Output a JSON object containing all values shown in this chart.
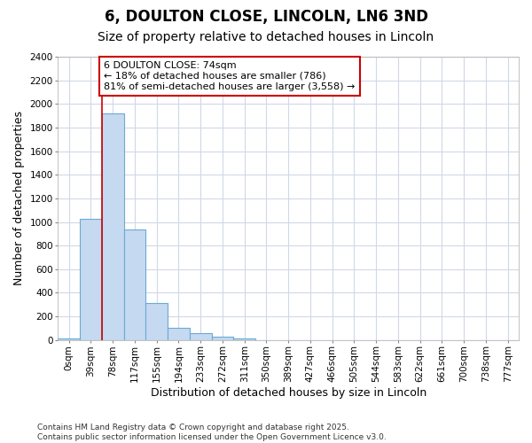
{
  "title": "6, DOULTON CLOSE, LINCOLN, LN6 3ND",
  "subtitle": "Size of property relative to detached houses in Lincoln",
  "xlabel": "Distribution of detached houses by size in Lincoln",
  "ylabel": "Number of detached properties",
  "bin_labels": [
    "0sqm",
    "39sqm",
    "78sqm",
    "117sqm",
    "155sqm",
    "194sqm",
    "233sqm",
    "272sqm",
    "311sqm",
    "350sqm",
    "389sqm",
    "427sqm",
    "466sqm",
    "505sqm",
    "544sqm",
    "583sqm",
    "622sqm",
    "661sqm",
    "700sqm",
    "738sqm",
    "777sqm"
  ],
  "bar_values": [
    15,
    1030,
    1920,
    940,
    315,
    105,
    55,
    30,
    10,
    0,
    0,
    0,
    0,
    0,
    0,
    0,
    0,
    0,
    0,
    0,
    0
  ],
  "bar_color": "#c5d9f0",
  "bar_edgecolor": "#6aaad4",
  "property_line_x": 2,
  "property_line_color": "#cc0000",
  "annotation_text": "6 DOULTON CLOSE: 74sqm\n← 18% of detached houses are smaller (786)\n81% of semi-detached houses are larger (3,558) →",
  "annotation_box_color": "#cc0000",
  "annotation_text_color": "black",
  "ylim": [
    0,
    2400
  ],
  "yticks": [
    0,
    200,
    400,
    600,
    800,
    1000,
    1200,
    1400,
    1600,
    1800,
    2000,
    2200,
    2400
  ],
  "bg_color": "#ffffff",
  "plot_bg_color": "#ffffff",
  "grid_color": "#d0d8e8",
  "footer_text": "Contains HM Land Registry data © Crown copyright and database right 2025.\nContains public sector information licensed under the Open Government Licence v3.0.",
  "title_fontsize": 12,
  "subtitle_fontsize": 10,
  "axis_label_fontsize": 9,
  "tick_fontsize": 7.5,
  "annotation_fontsize": 8,
  "footer_fontsize": 6.5
}
